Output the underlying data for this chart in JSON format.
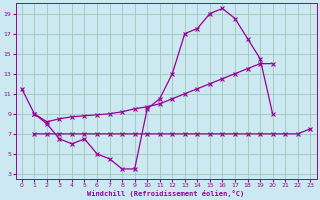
{
  "xlabel": "Windchill (Refroidissement éolien,°C)",
  "background_color": "#cce8f0",
  "grid_color": "#a0c8b8",
  "line_color": "#990099",
  "xlim": [
    -0.5,
    23.5
  ],
  "ylim": [
    2.5,
    20
  ],
  "xticks": [
    0,
    1,
    2,
    3,
    4,
    5,
    6,
    7,
    8,
    9,
    10,
    11,
    12,
    13,
    14,
    15,
    16,
    17,
    18,
    19,
    20,
    21,
    22,
    23
  ],
  "yticks": [
    3,
    5,
    7,
    9,
    11,
    13,
    15,
    17,
    19
  ],
  "hours": [
    0,
    1,
    2,
    3,
    4,
    5,
    6,
    7,
    8,
    9,
    10,
    11,
    12,
    13,
    14,
    15,
    16,
    17,
    18,
    19,
    20,
    21,
    22,
    23
  ],
  "c1_y": [
    11.5,
    9.0,
    8.0,
    6.5,
    6.0,
    6.5,
    5.0,
    4.5,
    3.5,
    3.5,
    9.5,
    10.5,
    13.0,
    17.0,
    17.5,
    19.0,
    19.5,
    18.5,
    16.5,
    14.5,
    9.0,
    null,
    null,
    null
  ],
  "c2_y": [
    null,
    9.0,
    8.2,
    8.5,
    8.7,
    8.8,
    8.9,
    9.0,
    9.2,
    9.5,
    9.7,
    10.0,
    10.5,
    11.0,
    11.5,
    12.0,
    12.5,
    13.0,
    13.5,
    14.0,
    14.0,
    null,
    null,
    null
  ],
  "c3_y": [
    null,
    7.0,
    7.0,
    7.0,
    7.0,
    7.0,
    7.0,
    7.0,
    7.0,
    7.0,
    7.0,
    7.0,
    7.0,
    7.0,
    7.0,
    7.0,
    7.0,
    7.0,
    7.0,
    7.0,
    7.0,
    7.0,
    7.0,
    7.5
  ]
}
